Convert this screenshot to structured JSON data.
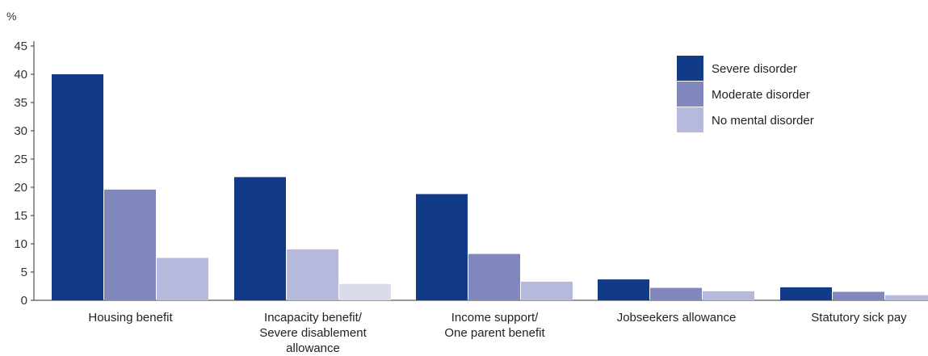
{
  "chart_data": {
    "type": "bar",
    "ylabel": "%",
    "xlabel": "",
    "ylim": [
      0,
      45
    ],
    "yticks": [
      0,
      5,
      10,
      15,
      20,
      25,
      30,
      35,
      40,
      45
    ],
    "grid": false,
    "legend_position": "top-right",
    "categories": [
      "Housing benefit",
      "Incapacity benefit/\nSevere disablement\nallowance",
      "Income support/\nOne parent benefit",
      "Jobseekers allowance",
      "Statutory sick pay"
    ],
    "series": [
      {
        "name": "Severe disorder",
        "color": "#123b87",
        "values": [
          40,
          21.8,
          18.8,
          3.7,
          2.3
        ]
      },
      {
        "name": "Moderate disorder",
        "color": "#7f87bc",
        "values": [
          19.6,
          9.0,
          8.2,
          2.2,
          1.5
        ]
      },
      {
        "name": "No mental disorder",
        "color": "#b6b9db",
        "values": [
          7.5,
          2.9,
          3.3,
          1.6,
          0.9
        ]
      }
    ],
    "bar_color_overrides": [
      {
        "series": 1,
        "category": 1,
        "color": "#b6b9db"
      },
      {
        "series": 2,
        "category": 1,
        "color": "#dadbeb"
      }
    ]
  }
}
